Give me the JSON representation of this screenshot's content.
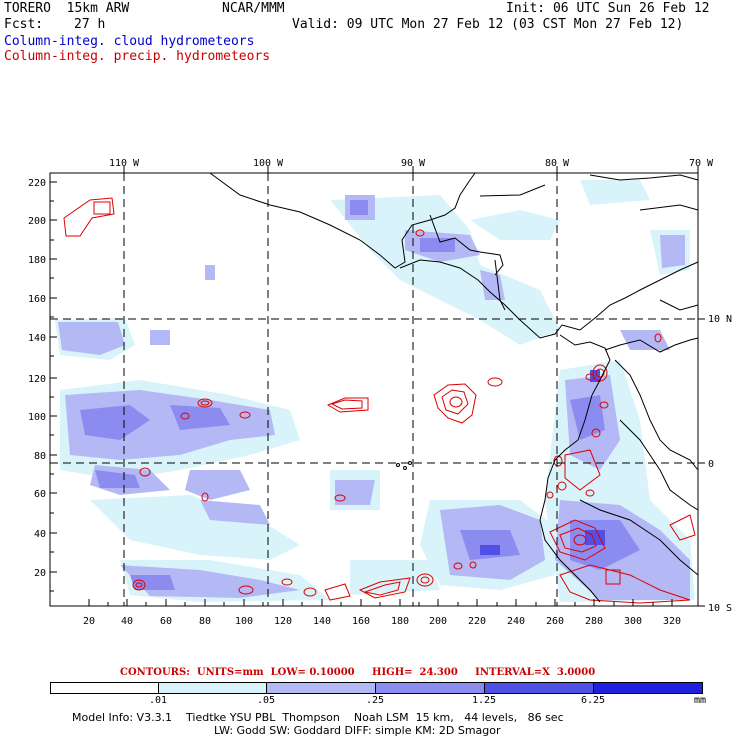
{
  "header": {
    "model": "TORERO  15km ARW",
    "org": "NCAR/MMM",
    "init": "Init: 06 UTC Sun 26 Feb 12",
    "fcst_label": "Fcst:",
    "fcst_value": "27 h",
    "valid": "Valid: 09 UTC Mon 27 Feb 12 (03 CST Mon 27 Feb 12)",
    "field1": "Column-integ. cloud hydrometeors",
    "field2": "Column-integ. precip. hydrometeors"
  },
  "axes": {
    "lon_labels": [
      "110 W",
      "100 W",
      "90 W",
      "80 W",
      "70 W"
    ],
    "lat_labels": [
      "10 N",
      "0",
      "10 S"
    ],
    "y_ticks": [
      "220",
      "200",
      "180",
      "160",
      "140",
      "120",
      "100",
      "80",
      "60",
      "40",
      "20"
    ],
    "x_ticks": [
      "20",
      "40",
      "60",
      "80",
      "100",
      "120",
      "140",
      "160",
      "180",
      "200",
      "220",
      "240",
      "260",
      "280",
      "300",
      "320"
    ]
  },
  "contours": "CONTOURS:  UNITS=mm  LOW= 0.10000     HIGH=  24.300     INTERVAL=X  3.0000",
  "colorbar": {
    "labels": [
      ".01",
      ".05",
      ".25",
      "1.25",
      "6.25"
    ],
    "unit": "mm",
    "colors": [
      "#ffffff",
      "#d8f4fa",
      "#b4b8f4",
      "#8c8cf0",
      "#5050e6",
      "#2020e0"
    ]
  },
  "footer": {
    "line1": "Model Info: V3.3.1    Tiedtke YSU PBL  Thompson    Noah LSM  15 km,   44 levels,   86 sec",
    "line2": "LW: Godd SW: Goddard DIFF: simple KM: 2D Smagor"
  },
  "colors": {
    "cloud_text": "#0000cc",
    "precip_text": "#cc0000",
    "precip_contour": "#dd0000"
  }
}
